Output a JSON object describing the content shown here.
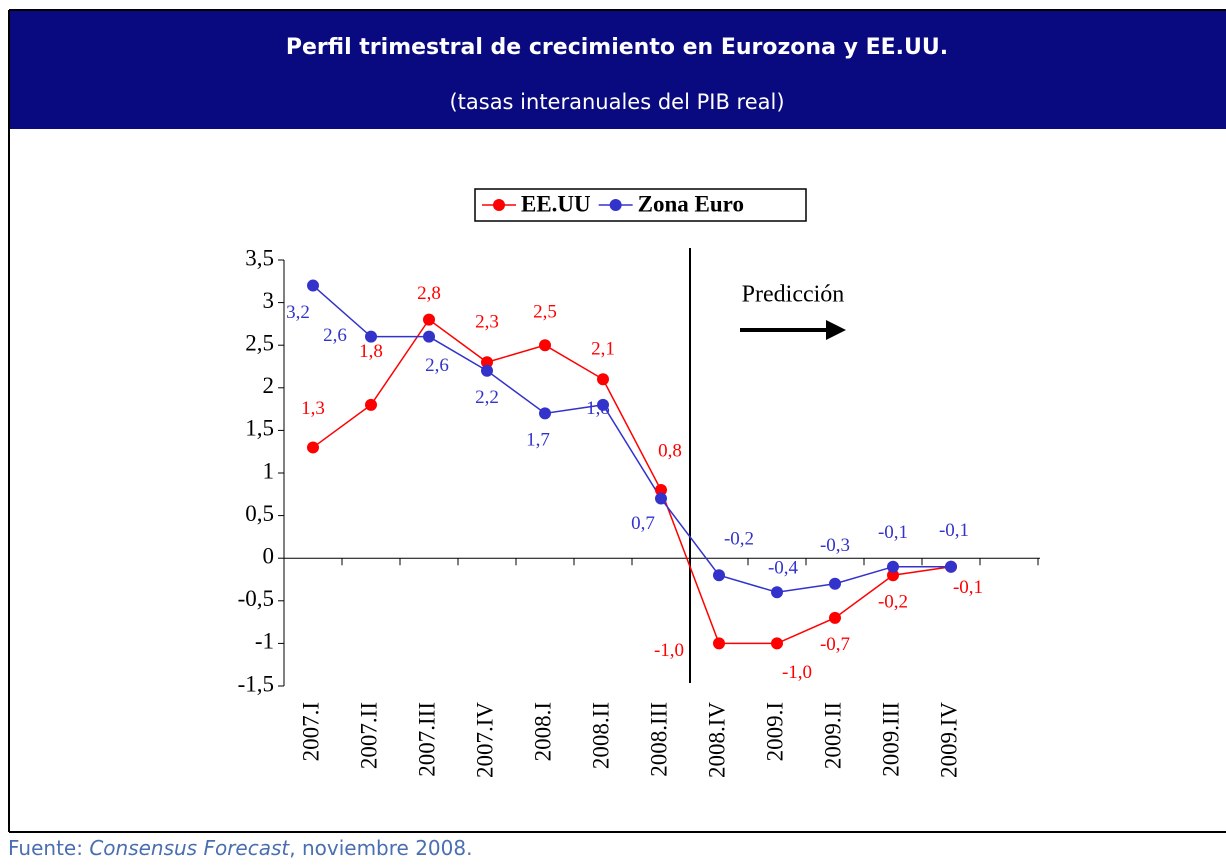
{
  "header": {
    "title": "Perfil trimestral de crecimiento en Eurozona y EE.UU.",
    "subtitle": "(tasas interanuales del PIB real)"
  },
  "chart_data": {
    "type": "line",
    "categories": [
      "2007.I",
      "2007.II",
      "2007.III",
      "2007.IV",
      "2008.I",
      "2008.II",
      "2008.III",
      "2008.IV",
      "2009.I",
      "2009.II",
      "2009.III",
      "2009.IV"
    ],
    "series": [
      {
        "name": "EE.UU",
        "color": "#ff0000",
        "values": [
          1.3,
          1.8,
          2.8,
          2.3,
          2.5,
          2.1,
          0.8,
          -1.0,
          -1.0,
          -0.7,
          -0.2,
          -0.1
        ],
        "value_labels": [
          "1,3",
          "1,8",
          "2,8",
          "2,3",
          "2,5",
          "2,1",
          "0,8",
          "-1,0",
          "-1,0",
          "-0,7",
          "-0,2",
          "-0,1"
        ]
      },
      {
        "name": "Zona Euro",
        "color": "#3333cc",
        "values": [
          3.2,
          2.6,
          2.6,
          2.2,
          1.7,
          1.8,
          0.7,
          -0.2,
          -0.4,
          -0.3,
          -0.1,
          -0.1
        ],
        "value_labels": [
          "3,2",
          "2,6",
          "2,6",
          "2,2",
          "1,7",
          "1,8",
          "0,7",
          "-0,2",
          "-0,4",
          "-0,3",
          "-0,1",
          "-0,1"
        ]
      }
    ],
    "ylim": [
      -1.5,
      3.5
    ],
    "yticks": [
      {
        "value": -1.5,
        "label": "-1,5"
      },
      -1,
      {
        "value": -0.5,
        "label": "-0,5"
      },
      0,
      {
        "value": 0.5,
        "label": "0,5"
      },
      1,
      {
        "value": 1.5,
        "label": "1,5"
      },
      2,
      {
        "value": 2.5,
        "label": "2,5"
      },
      3,
      {
        "value": 3.5,
        "label": "3,5"
      }
    ],
    "annotation": "Predicción",
    "legend": "top"
  },
  "footer": {
    "prefix": "Fuente: ",
    "source": "Consensus Forecast",
    "suffix": ", noviembre 2008."
  }
}
